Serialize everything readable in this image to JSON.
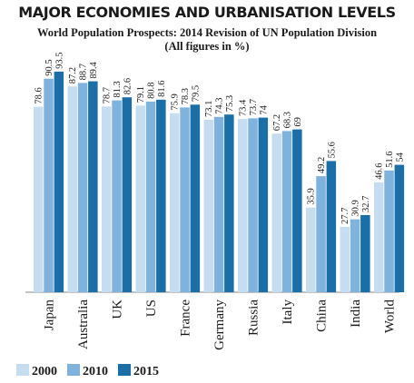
{
  "chart_data": {
    "type": "bar",
    "title": "MAJOR ECONOMIES AND URBANISATION LEVELS",
    "subtitle_line1": "World Population Prospects: 2014 Revision of UN Population Division",
    "subtitle_line2": "(All figures in %)",
    "categories": [
      "Japan",
      "Australia",
      "UK",
      "US",
      "France",
      "Germany",
      "Russia",
      "Italy",
      "China",
      "India",
      "World"
    ],
    "highlight_category": "India",
    "highlight_color": "#c0392b",
    "series": [
      {
        "name": "2000",
        "color": "#c6dcf0",
        "values": [
          78.6,
          87.2,
          78.7,
          79.1,
          75.9,
          73.1,
          73.4,
          67.2,
          35.9,
          27.7,
          46.6
        ]
      },
      {
        "name": "2010",
        "color": "#7fb2dc",
        "values": [
          90.5,
          88.7,
          81.3,
          80.8,
          78.3,
          74.3,
          73.7,
          68.3,
          49.2,
          30.9,
          51.6
        ]
      },
      {
        "name": "2015",
        "color": "#1a6fa8",
        "values": [
          93.5,
          89.4,
          82.6,
          81.6,
          79.5,
          75.3,
          74,
          69,
          55.6,
          32.7,
          54
        ]
      }
    ],
    "value_labels": [
      [
        "78.6",
        "87.2",
        "78.7",
        "79.1",
        "75.9",
        "73.1",
        "73.4",
        "67.2",
        "35.9",
        "27.7",
        "46.6"
      ],
      [
        "90.5",
        "88.7",
        "81.3",
        "80.8",
        "78.3",
        "74.3",
        "73.7",
        "68.3",
        "49.2",
        "30.9",
        "51.6"
      ],
      [
        "93.5",
        "89.4",
        "82.6",
        "81.6",
        "79.5",
        "75.3",
        "74",
        "69",
        "55.6",
        "32.7",
        "54"
      ]
    ],
    "ylim": [
      0,
      100
    ],
    "grid": false,
    "legend_position": "bottom-left"
  }
}
